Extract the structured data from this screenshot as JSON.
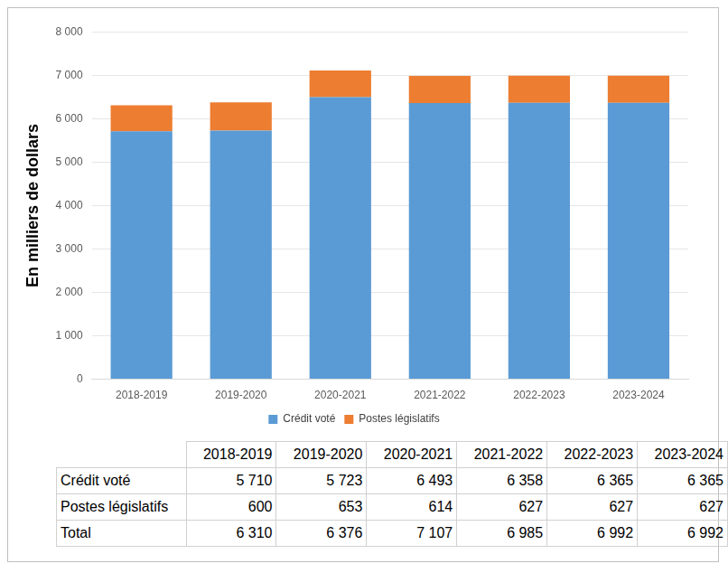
{
  "chart_data": {
    "type": "bar",
    "stacked": true,
    "y_label": "En milliers de dollars",
    "categories": [
      "2018-2019",
      "2019-2020",
      "2020-2021",
      "2021-2022",
      "2022-2023",
      "2023-2024"
    ],
    "series": [
      {
        "name": "Crédit voté",
        "color": "#5b9bd5",
        "values": [
          5710,
          5723,
          6493,
          6358,
          6365,
          6365
        ]
      },
      {
        "name": "Postes législatifs",
        "color": "#ed7d31",
        "values": [
          600,
          653,
          614,
          627,
          627,
          627
        ]
      }
    ],
    "ylim": [
      0,
      8000
    ],
    "yticks": [
      0,
      {
        "value": 1000,
        "label": "1 000"
      },
      {
        "value": 2000,
        "label": "2 000"
      },
      {
        "value": 3000,
        "label": "3 000"
      },
      {
        "value": 4000,
        "label": "4 000"
      },
      {
        "value": 5000,
        "label": "5 000"
      },
      {
        "value": 6000,
        "label": "6 000"
      },
      {
        "value": 7000,
        "label": "7 000"
      },
      {
        "value": 8000,
        "label": "8 000"
      }
    ],
    "grid": true,
    "legend": "bottom"
  },
  "table": {
    "header": [
      "2018-2019",
      "2019-2020",
      "2020-2021",
      "2021-2022",
      "2022-2023",
      "2023-2024"
    ],
    "rows": [
      {
        "label": "Crédit voté",
        "cells": [
          "5 710",
          "5 723",
          "6 493",
          "6 358",
          "6 365",
          "6 365"
        ]
      },
      {
        "label": "Postes législatifs",
        "cells": [
          "600",
          "653",
          "614",
          "627",
          "627",
          "627"
        ]
      },
      {
        "label": "Total",
        "cells": [
          "6 310",
          "6 376",
          "7 107",
          "6 985",
          "6 992",
          "6 992"
        ]
      }
    ]
  }
}
